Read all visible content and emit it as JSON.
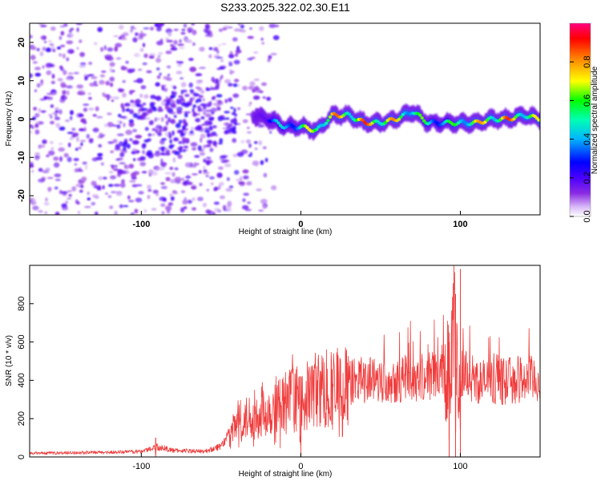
{
  "title": "S233.2025.322.02.30.E11",
  "colors": {
    "snr_line": "#f03c3c",
    "rainbow": [
      "#ffffff",
      "#c8a8f0",
      "#8a2be2",
      "#4b00ff",
      "#0000ff",
      "#00b4ff",
      "#00ffb4",
      "#00ff00",
      "#ffff00",
      "#ff8000",
      "#ff0000",
      "#ff0080"
    ]
  },
  "chart_data": [
    {
      "type": "heatmap",
      "name": "spectrogram",
      "xlabel": "Height of straight line (km)",
      "ylabel": "Frequency (Hz)",
      "xlim": [
        -170,
        150
      ],
      "ylim": [
        -25,
        25
      ],
      "xticks": [
        -100,
        0,
        100
      ],
      "yticks": [
        -20,
        -10,
        0,
        10,
        20
      ],
      "colorbar": {
        "label": "Normalized spectral amplitude",
        "range": [
          0,
          1
        ],
        "ticks": [
          "0.0",
          "0.2",
          "0.4",
          "0.6",
          "0.8"
        ]
      },
      "ridge": {
        "x": [
          -30,
          -20,
          -10,
          0,
          10,
          20,
          30,
          40,
          50,
          60,
          70,
          80,
          90,
          100,
          110,
          120,
          130,
          140,
          150
        ],
        "freq": [
          1,
          0,
          -2,
          -2,
          -3,
          1,
          1,
          -1,
          -1,
          0,
          2,
          -1,
          -1,
          -1,
          -1,
          0,
          0,
          1,
          0
        ],
        "amplitude": [
          0.3,
          0.4,
          0.5,
          0.65,
          0.8,
          0.85,
          0.85,
          0.9,
          0.9,
          0.8,
          0.7,
          0.6,
          0.55,
          0.7,
          0.8,
          0.85,
          0.9,
          0.8,
          0.7
        ]
      }
    },
    {
      "type": "line",
      "name": "snr",
      "xlabel": "Height of straight line (km)",
      "ylabel": "SNR (10 * v/v)",
      "xlim": [
        -170,
        150
      ],
      "ylim": [
        0,
        1000
      ],
      "xticks": [
        -100,
        0,
        100
      ],
      "yticks": [
        0,
        200,
        400,
        600,
        800
      ],
      "envelope": {
        "x": [
          -170,
          -120,
          -100,
          -90,
          -80,
          -60,
          -50,
          -45,
          -40,
          -30,
          -20,
          -10,
          -2,
          0,
          2,
          10,
          20,
          30,
          40,
          60,
          80,
          90,
          94,
          96,
          98,
          100,
          102,
          110,
          120,
          140,
          150
        ],
        "y": [
          20,
          25,
          30,
          55,
          35,
          30,
          60,
          120,
          180,
          230,
          260,
          300,
          330,
          250,
          320,
          380,
          350,
          400,
          420,
          420,
          430,
          470,
          560,
          700,
          450,
          400,
          470,
          410,
          400,
          420,
          410
        ]
      },
      "spikes": [
        {
          "x": 100,
          "y": 980
        },
        {
          "x": 97,
          "y": 850
        },
        {
          "x": 93,
          "y": 600
        },
        {
          "x": 0,
          "y": 420
        },
        {
          "x": -91,
          "y": 100
        }
      ]
    }
  ]
}
